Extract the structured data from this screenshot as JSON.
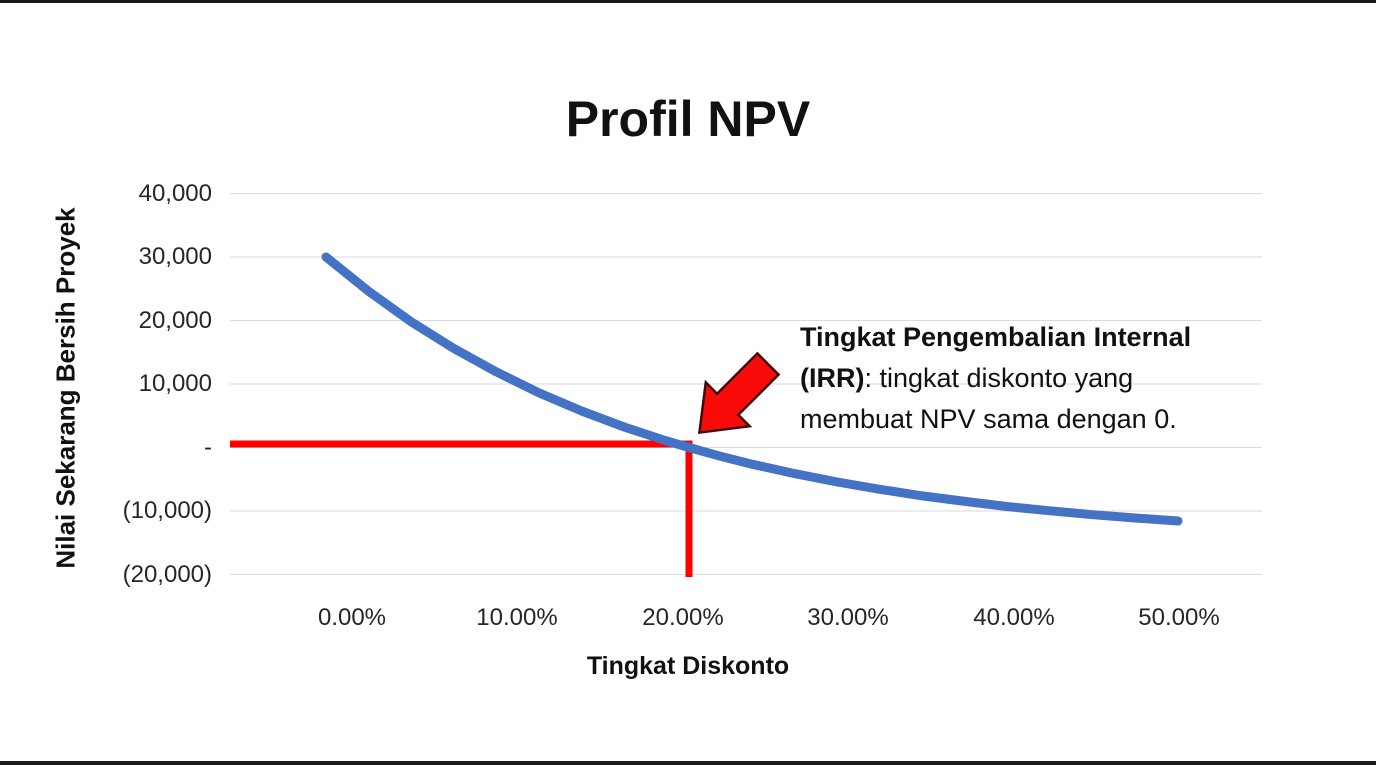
{
  "chart": {
    "title": "Profil NPV",
    "y_axis_label": "Nilai Sekarang Bersih Proyek",
    "x_axis_label": "Tingkat Diskonto",
    "y_tick_labels": [
      "40,000",
      "30,000",
      "20,000",
      "10,000",
      "-",
      "(10,000)",
      "(20,000)"
    ],
    "x_tick_labels": [
      "0.00%",
      "10.00%",
      "20.00%",
      "30.00%",
      "40.00%",
      "50.00%"
    ]
  },
  "annotation": {
    "full_text": "Tingkat Pengembalian Internal (IRR): tingkat diskonto yang membuat NPV sama dengan 0.",
    "lines": [
      {
        "bold": "Tingkat Pengembalian Internal",
        "regular": ""
      },
      {
        "bold": "(IRR)",
        "regular": ": tingkat diskonto yang"
      },
      {
        "bold": "",
        "regular": "membuat NPV sama dengan 0."
      }
    ]
  },
  "icons": {
    "irr_arrow": "block-arrow-pointing-down-left"
  },
  "chart_data": {
    "type": "line",
    "title": "Profil NPV",
    "xlabel": "Tingkat Diskonto",
    "ylabel": "Nilai Sekarang Bersih Proyek",
    "xlim_pct": [
      0,
      50
    ],
    "ylim": [
      -20000,
      40000
    ],
    "x_ticks_pct": [
      0,
      10,
      20,
      30,
      40,
      50
    ],
    "y_ticks": [
      40000,
      30000,
      20000,
      10000,
      0,
      -10000,
      -20000
    ],
    "grid": true,
    "legend": false,
    "series": [
      {
        "name": "NPV",
        "color": "#4472C4",
        "x_pct": [
          0,
          2.5,
          5,
          7.5,
          10,
          12.5,
          15,
          17.5,
          20,
          21.3,
          23,
          25,
          27.5,
          30,
          32.5,
          35,
          37.5,
          40,
          42.5,
          45,
          47.5,
          50
        ],
        "y": [
          30000,
          24600,
          19800,
          15600,
          11900,
          8600,
          5750,
          3230,
          1030,
          0,
          -1270,
          -2630,
          -4110,
          -5440,
          -6580,
          -7620,
          -8490,
          -9300,
          -9970,
          -10590,
          -11110,
          -11580
        ]
      }
    ],
    "irr_marker": {
      "x_pct": 21.3,
      "y": 0,
      "description": "Red crosshair marks the discount rate where NPV equals 0 (IRR, approx. 21%)"
    },
    "colors": {
      "curve": "#4472C4",
      "crosshair": "#FF0000",
      "arrow_fill": "#FB0A0A",
      "arrow_outline": "#3D0C0C",
      "gridline": "#DADADA",
      "text": "#1A1A1A"
    }
  }
}
